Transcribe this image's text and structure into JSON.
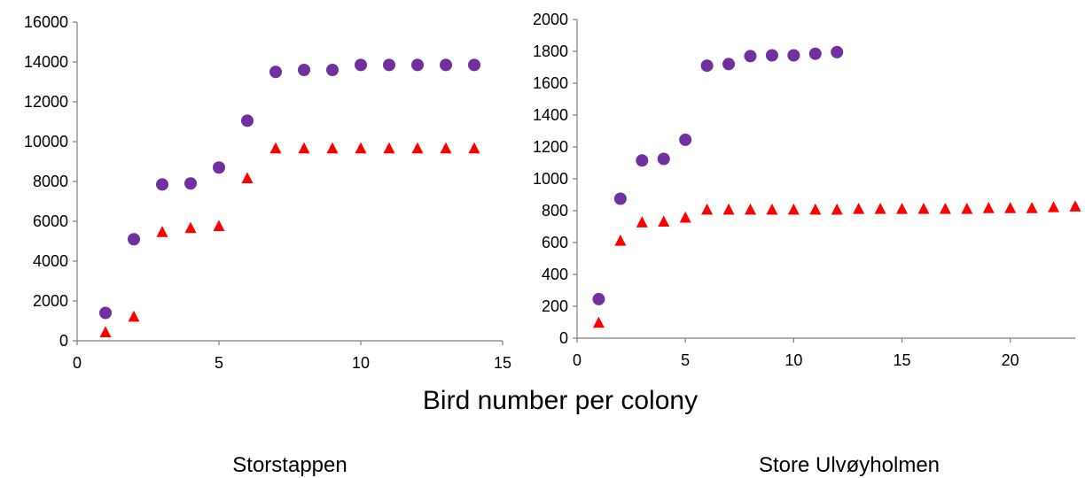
{
  "shared_xlabel": "Bird number per colony",
  "colors": {
    "circles": "#7030a0",
    "triangles": "#ff0000",
    "axis": "#7f7f7f"
  },
  "chart_data": [
    {
      "type": "scatter",
      "caption": "Storstappen",
      "xlim": [
        0,
        15
      ],
      "ylim": [
        0,
        16000
      ],
      "xticks": [
        "0",
        "5",
        "10",
        "15"
      ],
      "yticks": [
        "0",
        "2000",
        "4000",
        "6000",
        "8000",
        "10000",
        "12000",
        "14000",
        "16000"
      ],
      "grid": false,
      "series": [
        {
          "marker": "circle",
          "color": "#7030a0",
          "x": [
            1,
            2,
            3,
            4,
            5,
            6,
            7,
            8,
            9,
            10,
            11,
            12,
            13,
            14
          ],
          "y": [
            1400,
            5100,
            7850,
            7900,
            8700,
            11050,
            13500,
            13600,
            13600,
            13850,
            13850,
            13850,
            13850,
            13850
          ]
        },
        {
          "marker": "triangle",
          "color": "#ff0000",
          "x": [
            1,
            2,
            3,
            4,
            5,
            6,
            7,
            8,
            9,
            10,
            11,
            12,
            13,
            14
          ],
          "y": [
            420,
            1200,
            5450,
            5650,
            5750,
            8150,
            9650,
            9650,
            9650,
            9650,
            9650,
            9650,
            9650,
            9650
          ]
        }
      ]
    },
    {
      "type": "scatter",
      "caption": "Store Ulvøyholmen",
      "xlim": [
        0,
        23
      ],
      "ylim": [
        0,
        2000
      ],
      "xticks": [
        "0",
        "5",
        "10",
        "15",
        "20"
      ],
      "yticks": [
        "0",
        "200",
        "400",
        "600",
        "800",
        "1000",
        "1200",
        "1400",
        "1600",
        "1800",
        "2000"
      ],
      "grid": false,
      "series": [
        {
          "marker": "circle",
          "color": "#7030a0",
          "x": [
            1,
            2,
            3,
            4,
            5,
            6,
            7,
            8,
            9,
            10,
            11,
            12
          ],
          "y": [
            245,
            875,
            1115,
            1125,
            1245,
            1710,
            1720,
            1770,
            1775,
            1775,
            1785,
            1795
          ]
        },
        {
          "marker": "triangle",
          "color": "#ff0000",
          "x": [
            1,
            2,
            3,
            4,
            5,
            6,
            7,
            8,
            9,
            10,
            11,
            12,
            13,
            14,
            15,
            16,
            17,
            18,
            19,
            20,
            21,
            22,
            23
          ],
          "y": [
            95,
            610,
            725,
            730,
            755,
            805,
            805,
            805,
            805,
            805,
            805,
            805,
            810,
            810,
            810,
            810,
            810,
            810,
            815,
            815,
            815,
            820,
            825
          ]
        }
      ]
    }
  ]
}
